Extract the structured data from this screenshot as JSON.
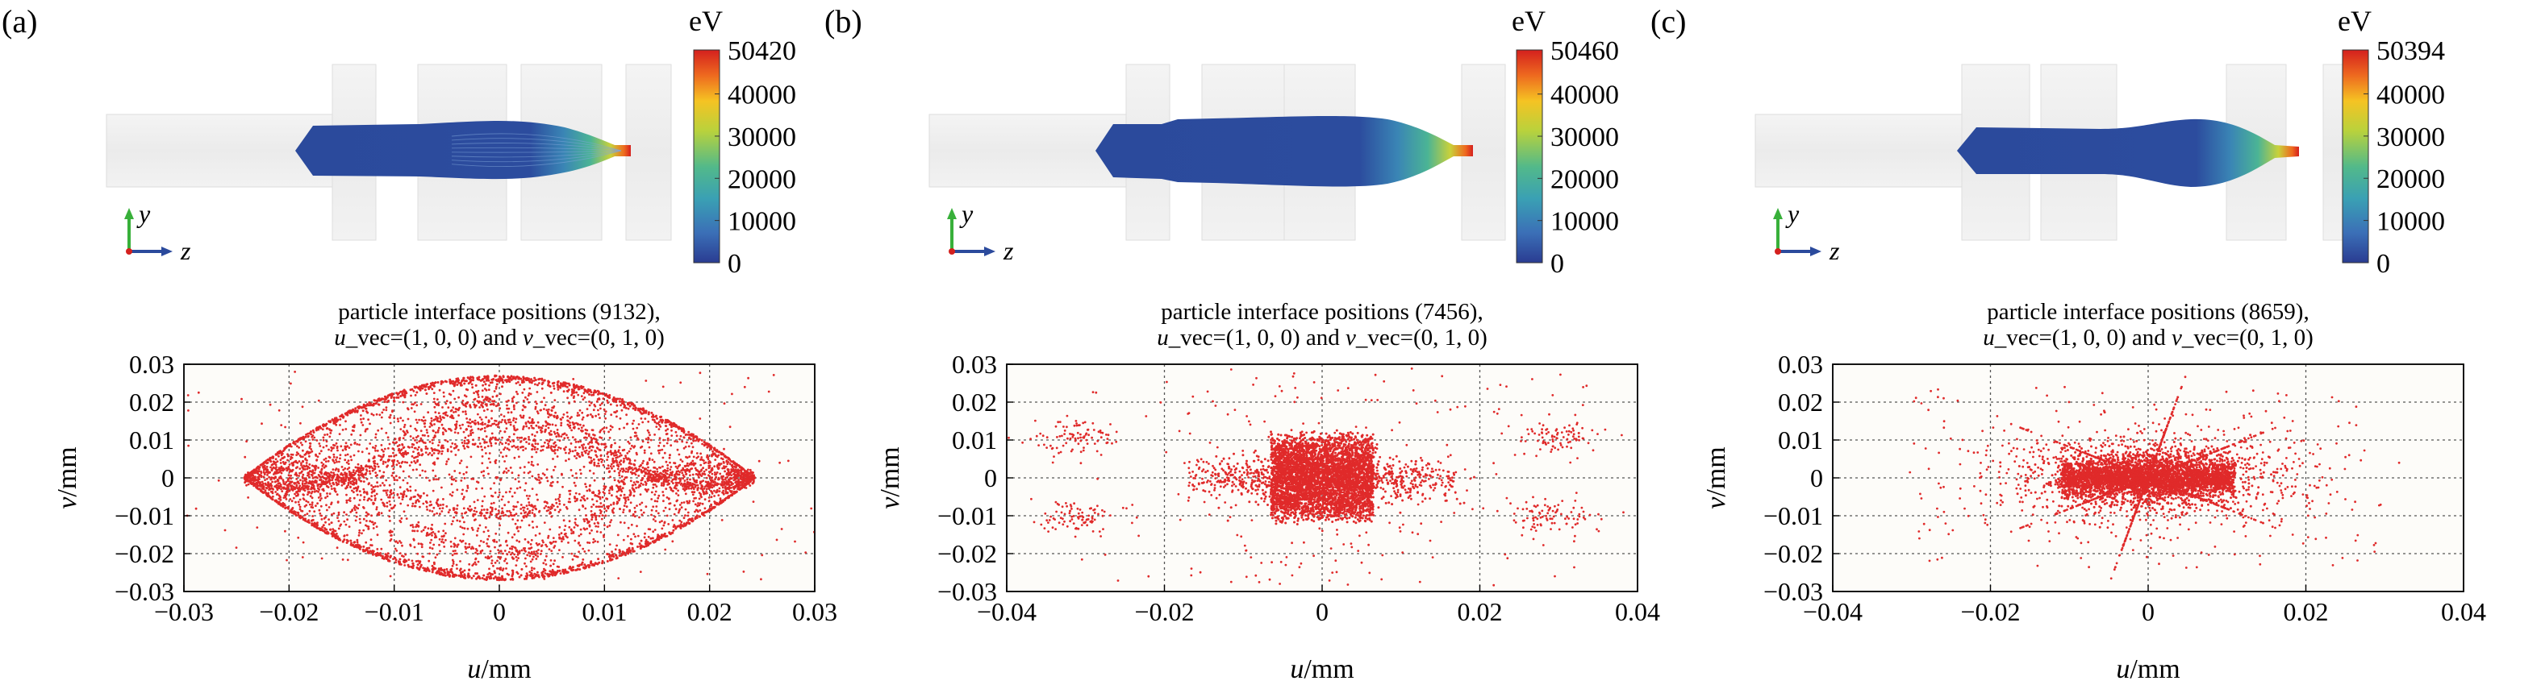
{
  "figure": {
    "colorbar_unit": "eV",
    "view_axes": {
      "vertical": "y",
      "horizontal": "z"
    },
    "colors": {
      "particles": "#e02a2a",
      "beam": "#2b4a9c",
      "grid": "#555555",
      "plot_bg": "#fdfcf9",
      "electrode": "#e9e9e9",
      "colormap": [
        "#2a3c92",
        "#3b6fb7",
        "#3aa0b4",
        "#52b98a",
        "#b9d23c",
        "#f5c323",
        "#ee6a1f",
        "#d4201e"
      ]
    }
  },
  "panels": [
    {
      "label": "(a)",
      "colorbar": {
        "max": "50420",
        "ticks": [
          "40000",
          "30000",
          "20000",
          "10000",
          "0"
        ]
      },
      "plot_title_line1": "particle interface positions (9132),",
      "plot_title_line2_parts": [
        "u",
        "_vec=(1, 0, 0) and ",
        "v",
        "_vec=(0, 1, 0)"
      ]
    },
    {
      "label": "(b)",
      "colorbar": {
        "max": "50460",
        "ticks": [
          "40000",
          "30000",
          "20000",
          "10000",
          "0"
        ]
      },
      "plot_title_line1": "particle interface positions (7456),",
      "plot_title_line2_parts": [
        "u",
        "_vec=(1, 0, 0) and ",
        "v",
        "_vec=(0, 1, 0)"
      ]
    },
    {
      "label": "(c)",
      "colorbar": {
        "max": "50394",
        "ticks": [
          "40000",
          "30000",
          "20000",
          "10000",
          "0"
        ]
      },
      "plot_title_line1": "particle interface positions (8659),",
      "plot_title_line2_parts": [
        "u",
        "_vec=(1, 0, 0) and ",
        "v",
        "_vec=(0, 1, 0)"
      ]
    }
  ],
  "chart_data": [
    {
      "type": "scatter",
      "title": "particle interface positions (9132), u_vec=(1, 0, 0) and v_vec=(0, 1, 0)",
      "xlabel": "u/mm",
      "ylabel": "v/mm",
      "xlim": [
        -0.03,
        0.03
      ],
      "ylim": [
        -0.03,
        0.03
      ],
      "xticks": [
        -0.03,
        -0.02,
        -0.01,
        0,
        0.01,
        0.02,
        0.03
      ],
      "xtick_labels": [
        "−0.03",
        "−0.02",
        "−0.01",
        "0",
        "0.01",
        "0.02",
        "0.03"
      ],
      "yticks": [
        0.03,
        0.02,
        0.01,
        0,
        -0.01,
        -0.02,
        -0.03
      ],
      "ytick_labels": [
        "0.03",
        "0.02",
        "0.01",
        "0",
        "−0.01",
        "−0.02",
        "−0.03"
      ],
      "grid": true,
      "series": [
        {
          "color": "#e02a2a",
          "point_count": 9132,
          "distribution": "lens-shaped envelope |v| ≤ 0.027·(1−(u/0.024)²) with crossing caustic bands and sparse halo",
          "points": []
        }
      ]
    },
    {
      "type": "scatter",
      "title": "particle interface positions (7456), u_vec=(1, 0, 0) and v_vec=(0, 1, 0)",
      "xlabel": "u/mm",
      "ylabel": "v/mm",
      "xlim": [
        -0.04,
        0.04
      ],
      "ylim": [
        -0.03,
        0.03
      ],
      "xticks": [
        -0.04,
        -0.02,
        0,
        0.02,
        0.04
      ],
      "xtick_labels": [
        "−0.04",
        "−0.02",
        "0",
        "0.02",
        "0.04"
      ],
      "yticks": [
        0.03,
        0.02,
        0.01,
        0,
        -0.01,
        -0.02,
        -0.03
      ],
      "ytick_labels": [
        "0.03",
        "0.02",
        "0.01",
        "0",
        "−0.01",
        "−0.02",
        "−0.03"
      ],
      "grid": true,
      "series": [
        {
          "color": "#e02a2a",
          "point_count": 7456,
          "distribution": "dense core |u| ≤ 0.0065, |v| ≤ 0.013 with horizontal wings and four side clusters near u ≈ ±0.03, v ≈ ±0.01",
          "points": []
        }
      ]
    },
    {
      "type": "scatter",
      "title": "particle interface positions (8659), u_vec=(1, 0, 0) and v_vec=(0, 1, 0)",
      "xlabel": "u/mm",
      "ylabel": "v/mm",
      "xlim": [
        -0.04,
        0.04
      ],
      "ylim": [
        -0.03,
        0.03
      ],
      "xticks": [
        -0.04,
        -0.02,
        0,
        0.02,
        0.04
      ],
      "xtick_labels": [
        "−0.04",
        "−0.02",
        "0",
        "0.02",
        "0.04"
      ],
      "yticks": [
        0.03,
        0.02,
        0.01,
        0,
        -0.01,
        -0.02,
        -0.03
      ],
      "ytick_labels": [
        "0.03",
        "0.02",
        "0.01",
        "0",
        "−0.01",
        "−0.02",
        "−0.03"
      ],
      "grid": true,
      "series": [
        {
          "color": "#e02a2a",
          "point_count": 8659,
          "distribution": "dense core |u| ≤ 0.011, |v| ≤ 0.005 with star-shaped spikes and diffuse halo out to |u| ≈ 0.03",
          "points": []
        }
      ]
    }
  ]
}
